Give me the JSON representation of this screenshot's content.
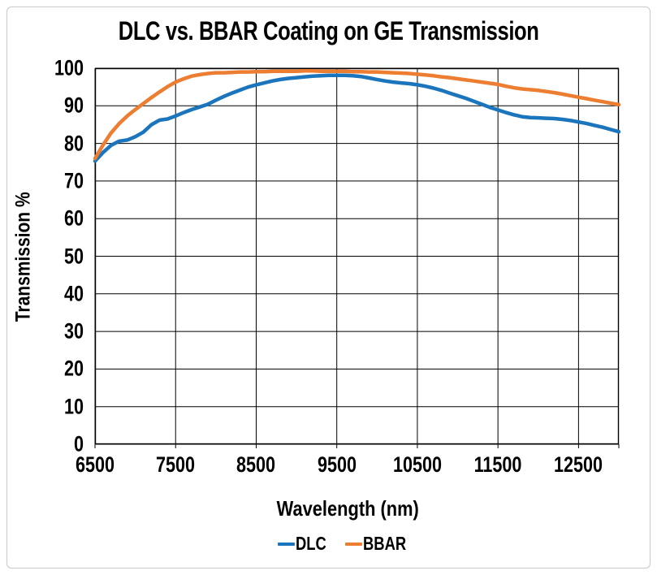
{
  "window": {
    "background": "#ffffff",
    "frame_border_color": "#c9c9c9"
  },
  "chart_data": {
    "type": "line",
    "title": "DLC vs. BBAR Coating on GE Transmission",
    "xlabel": "Wavelength (nm)",
    "ylabel": "Transmission %",
    "xlim": [
      6500,
      13000
    ],
    "ylim": [
      0,
      100
    ],
    "x_ticks": [
      6500,
      7500,
      8500,
      9500,
      10500,
      11500,
      12500
    ],
    "y_ticks": [
      0,
      10,
      20,
      30,
      40,
      50,
      60,
      70,
      80,
      90,
      100
    ],
    "grid": true,
    "grid_color": "#000000",
    "axis_color": "#000000",
    "legend_position": "bottom",
    "x": [
      6500,
      6600,
      6700,
      6800,
      6900,
      7000,
      7100,
      7200,
      7300,
      7400,
      7500,
      7600,
      7700,
      7800,
      7900,
      8000,
      8100,
      8200,
      8300,
      8400,
      8500,
      8600,
      8700,
      8800,
      8900,
      9000,
      9100,
      9200,
      9300,
      9400,
      9500,
      9600,
      9700,
      9800,
      9900,
      10000,
      10100,
      10200,
      10300,
      10400,
      10500,
      10600,
      10700,
      10800,
      10900,
      11000,
      11100,
      11200,
      11300,
      11400,
      11500,
      11600,
      11700,
      11800,
      11900,
      12000,
      12100,
      12200,
      12300,
      12400,
      12500,
      12600,
      12700,
      12800,
      12900,
      13000
    ],
    "series": [
      {
        "name": "DLC",
        "color": "#1B75BC",
        "values": [
          75.3,
          77.6,
          79.5,
          80.6,
          80.9,
          81.8,
          83.0,
          85.0,
          86.2,
          86.5,
          87.3,
          88.2,
          89.0,
          89.7,
          90.4,
          91.5,
          92.5,
          93.4,
          94.2,
          95.0,
          95.6,
          96.1,
          96.6,
          97.0,
          97.3,
          97.5,
          97.7,
          97.9,
          98.0,
          98.1,
          98.1,
          98.1,
          98.0,
          97.8,
          97.4,
          97.0,
          96.6,
          96.3,
          96.1,
          95.9,
          95.6,
          95.2,
          94.7,
          94.1,
          93.4,
          92.7,
          92.0,
          91.2,
          90.4,
          89.6,
          88.9,
          88.2,
          87.6,
          87.1,
          86.9,
          86.8,
          86.7,
          86.6,
          86.4,
          86.1,
          85.7,
          85.3,
          84.8,
          84.3,
          83.7,
          83.1
        ]
      },
      {
        "name": "BBAR",
        "color": "#ED7D31",
        "values": [
          76.0,
          79.6,
          82.8,
          85.3,
          87.3,
          89.0,
          90.6,
          92.2,
          93.7,
          95.1,
          96.3,
          97.2,
          97.9,
          98.3,
          98.6,
          98.8,
          98.8,
          98.9,
          99.0,
          99.0,
          99.1,
          99.1,
          99.2,
          99.2,
          99.2,
          99.2,
          99.3,
          99.3,
          99.2,
          99.2,
          99.2,
          99.2,
          99.1,
          99.1,
          99.0,
          99.0,
          98.9,
          98.8,
          98.7,
          98.6,
          98.4,
          98.2,
          98.0,
          97.7,
          97.5,
          97.2,
          96.9,
          96.6,
          96.3,
          96.0,
          95.7,
          95.2,
          94.8,
          94.5,
          94.3,
          94.1,
          93.8,
          93.5,
          93.1,
          92.7,
          92.3,
          91.9,
          91.5,
          91.1,
          90.7,
          90.3
        ]
      }
    ]
  }
}
